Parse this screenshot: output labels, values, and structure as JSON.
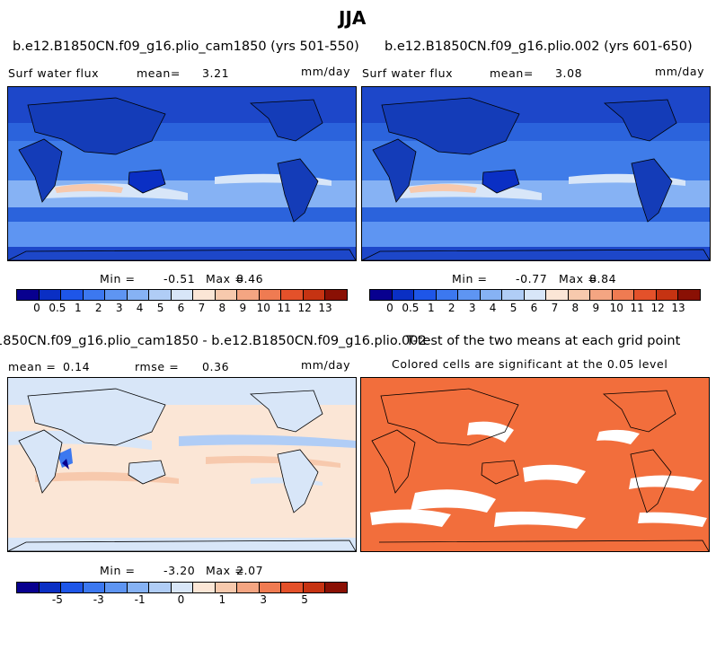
{
  "figure": {
    "title": "JJA"
  },
  "panels": [
    {
      "title": "b.e12.B1850CN.f09_g16.plio_cam1850 (yrs 501-550)",
      "left_label": "Surf water flux",
      "stat_label": "mean=",
      "stat_value": "3.21",
      "units": "mm/day",
      "min_label": "Min =",
      "min_value": "-0.51",
      "max_label": "Max =",
      "max_value": "8.46"
    },
    {
      "title": "b.e12.B1850CN.f09_g16.plio.002 (yrs 601-650)",
      "left_label": "Surf water flux",
      "stat_label": "mean=",
      "stat_value": "3.08",
      "units": "mm/day",
      "min_label": "Min =",
      "min_value": "-0.77",
      "max_label": "Max =",
      "max_value": "8.84"
    },
    {
      "title": "1850CN.f09_g16.plio_cam1850 - b.e12.B1850CN.f09_g16.plio.002",
      "mean_label": "mean =",
      "mean_value": "0.14",
      "rmse_label": "rmse =",
      "rmse_value": "0.36",
      "units": "mm/day",
      "min_label": "Min =",
      "min_value": "-3.20",
      "max_label": "Max =",
      "max_value": "2.07"
    },
    {
      "title": "T-test of the two means at each grid point",
      "subtitle": "Colored cells are significant at the 0.05 level"
    }
  ],
  "colors": {
    "abs_scale": [
      "#08008f",
      "#0a2fc4",
      "#1e56e8",
      "#3c78f0",
      "#5e95f2",
      "#86b2f4",
      "#b0cdf6",
      "#d8e6f8",
      "#fbe6d6",
      "#f7c9ad",
      "#f4a582",
      "#ef7b52",
      "#e4512a",
      "#c63312",
      "#8a1004"
    ],
    "diff_scale": [
      "#08008f",
      "#0a2fc4",
      "#1e56e8",
      "#3c78f0",
      "#5e95f2",
      "#86b2f4",
      "#b0cdf6",
      "#d8e6f8",
      "#fbe6d6",
      "#f7c9ad",
      "#f4a582",
      "#ef7b52",
      "#e4512a",
      "#c63312",
      "#8a1004"
    ],
    "significant": "#f26e3c"
  },
  "chart_data": [
    {
      "type": "heatmap",
      "title": "b.e12.B1850CN.f09_g16.plio_cam1850 (yrs 501-550)",
      "variable": "Surf water flux",
      "units": "mm/day",
      "mean": 3.21,
      "min": -0.51,
      "max": 8.46,
      "colorbar_levels": [
        0,
        0.5,
        1,
        2,
        3,
        4,
        5,
        6,
        7,
        8,
        9,
        10,
        11,
        12,
        13
      ],
      "colorbar_labels": [
        "0",
        "0.5",
        "1",
        "2",
        "3",
        "4",
        "5",
        "6",
        "7",
        "8",
        "9",
        "10",
        "11",
        "12",
        "13"
      ]
    },
    {
      "type": "heatmap",
      "title": "b.e12.B1850CN.f09_g16.plio.002 (yrs 601-650)",
      "variable": "Surf water flux",
      "units": "mm/day",
      "mean": 3.08,
      "min": -0.77,
      "max": 8.84,
      "colorbar_levels": [
        0,
        0.5,
        1,
        2,
        3,
        4,
        5,
        6,
        7,
        8,
        9,
        10,
        11,
        12,
        13
      ],
      "colorbar_labels": [
        "0",
        "0.5",
        "1",
        "2",
        "3",
        "4",
        "5",
        "6",
        "7",
        "8",
        "9",
        "10",
        "11",
        "12",
        "13"
      ]
    },
    {
      "type": "heatmap",
      "title": "1850CN.f09_g16.plio_cam1850 - b.e12.B1850CN.f09_g16.plio.002",
      "units": "mm/day",
      "mean": 0.14,
      "rmse": 0.36,
      "min": -3.2,
      "max": 2.07,
      "colorbar_labels": [
        "-5",
        "-3",
        "-1",
        "0",
        "1",
        "3",
        "5"
      ]
    },
    {
      "type": "heatmap",
      "title": "T-test of the two means at each grid point",
      "subtitle": "Colored cells are significant at the 0.05 level"
    }
  ]
}
